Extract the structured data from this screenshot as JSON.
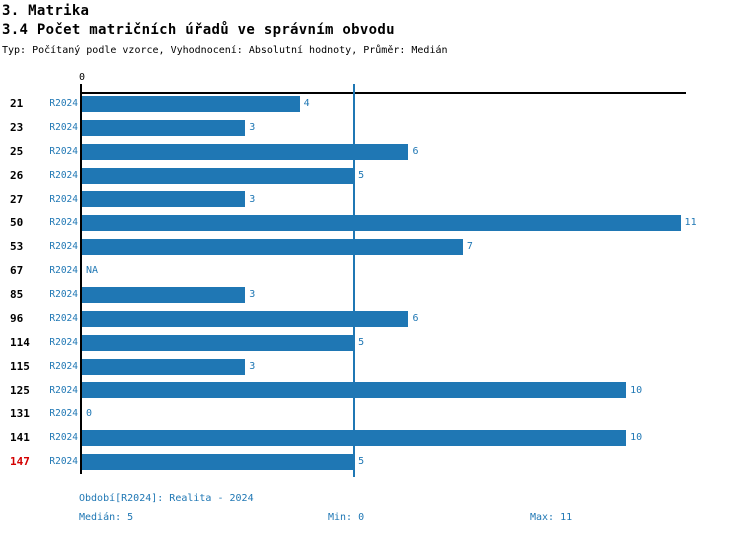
{
  "header": {
    "title": "3. Matrika",
    "subtitle": "3.4 Počet matričních úřadů ve správním obvodu",
    "meta": "Typ: Počítaný podle vzorce, Vyhodnocení: Absolutní hodnoty, Průměr: Medián"
  },
  "chart_data": {
    "type": "bar",
    "orientation": "horizontal",
    "title": "3.4 Počet matričních úřadů ve správním obvodu",
    "axis_zero_label": "0",
    "categories": [
      "21",
      "23",
      "25",
      "26",
      "27",
      "50",
      "53",
      "67",
      "85",
      "96",
      "114",
      "115",
      "125",
      "131",
      "141",
      "147"
    ],
    "series": [
      {
        "name": "R2024",
        "values": [
          4,
          3,
          6,
          5,
          3,
          11,
          7,
          null,
          3,
          6,
          5,
          3,
          10,
          0,
          10,
          5
        ],
        "value_labels": [
          "4",
          "3",
          "6",
          "5",
          "3",
          "11",
          "7",
          "NA",
          "3",
          "6",
          "5",
          "3",
          "10",
          "0",
          "10",
          "5"
        ]
      }
    ],
    "xlim": [
      0,
      11.1
    ],
    "median": 5,
    "min": 0,
    "max": 11,
    "highlighted_category": "147",
    "grid": false,
    "legend_position": "none"
  },
  "footer": {
    "period": "Období[R2024]: Realita - 2024",
    "median": "Medián: 5",
    "min": "Min: 0",
    "max": "Max: 11"
  },
  "colors": {
    "bar": "#1f77b4",
    "label_blue": "#1f77b4",
    "highlight_red": "#d40000",
    "axis_black": "#000000"
  }
}
